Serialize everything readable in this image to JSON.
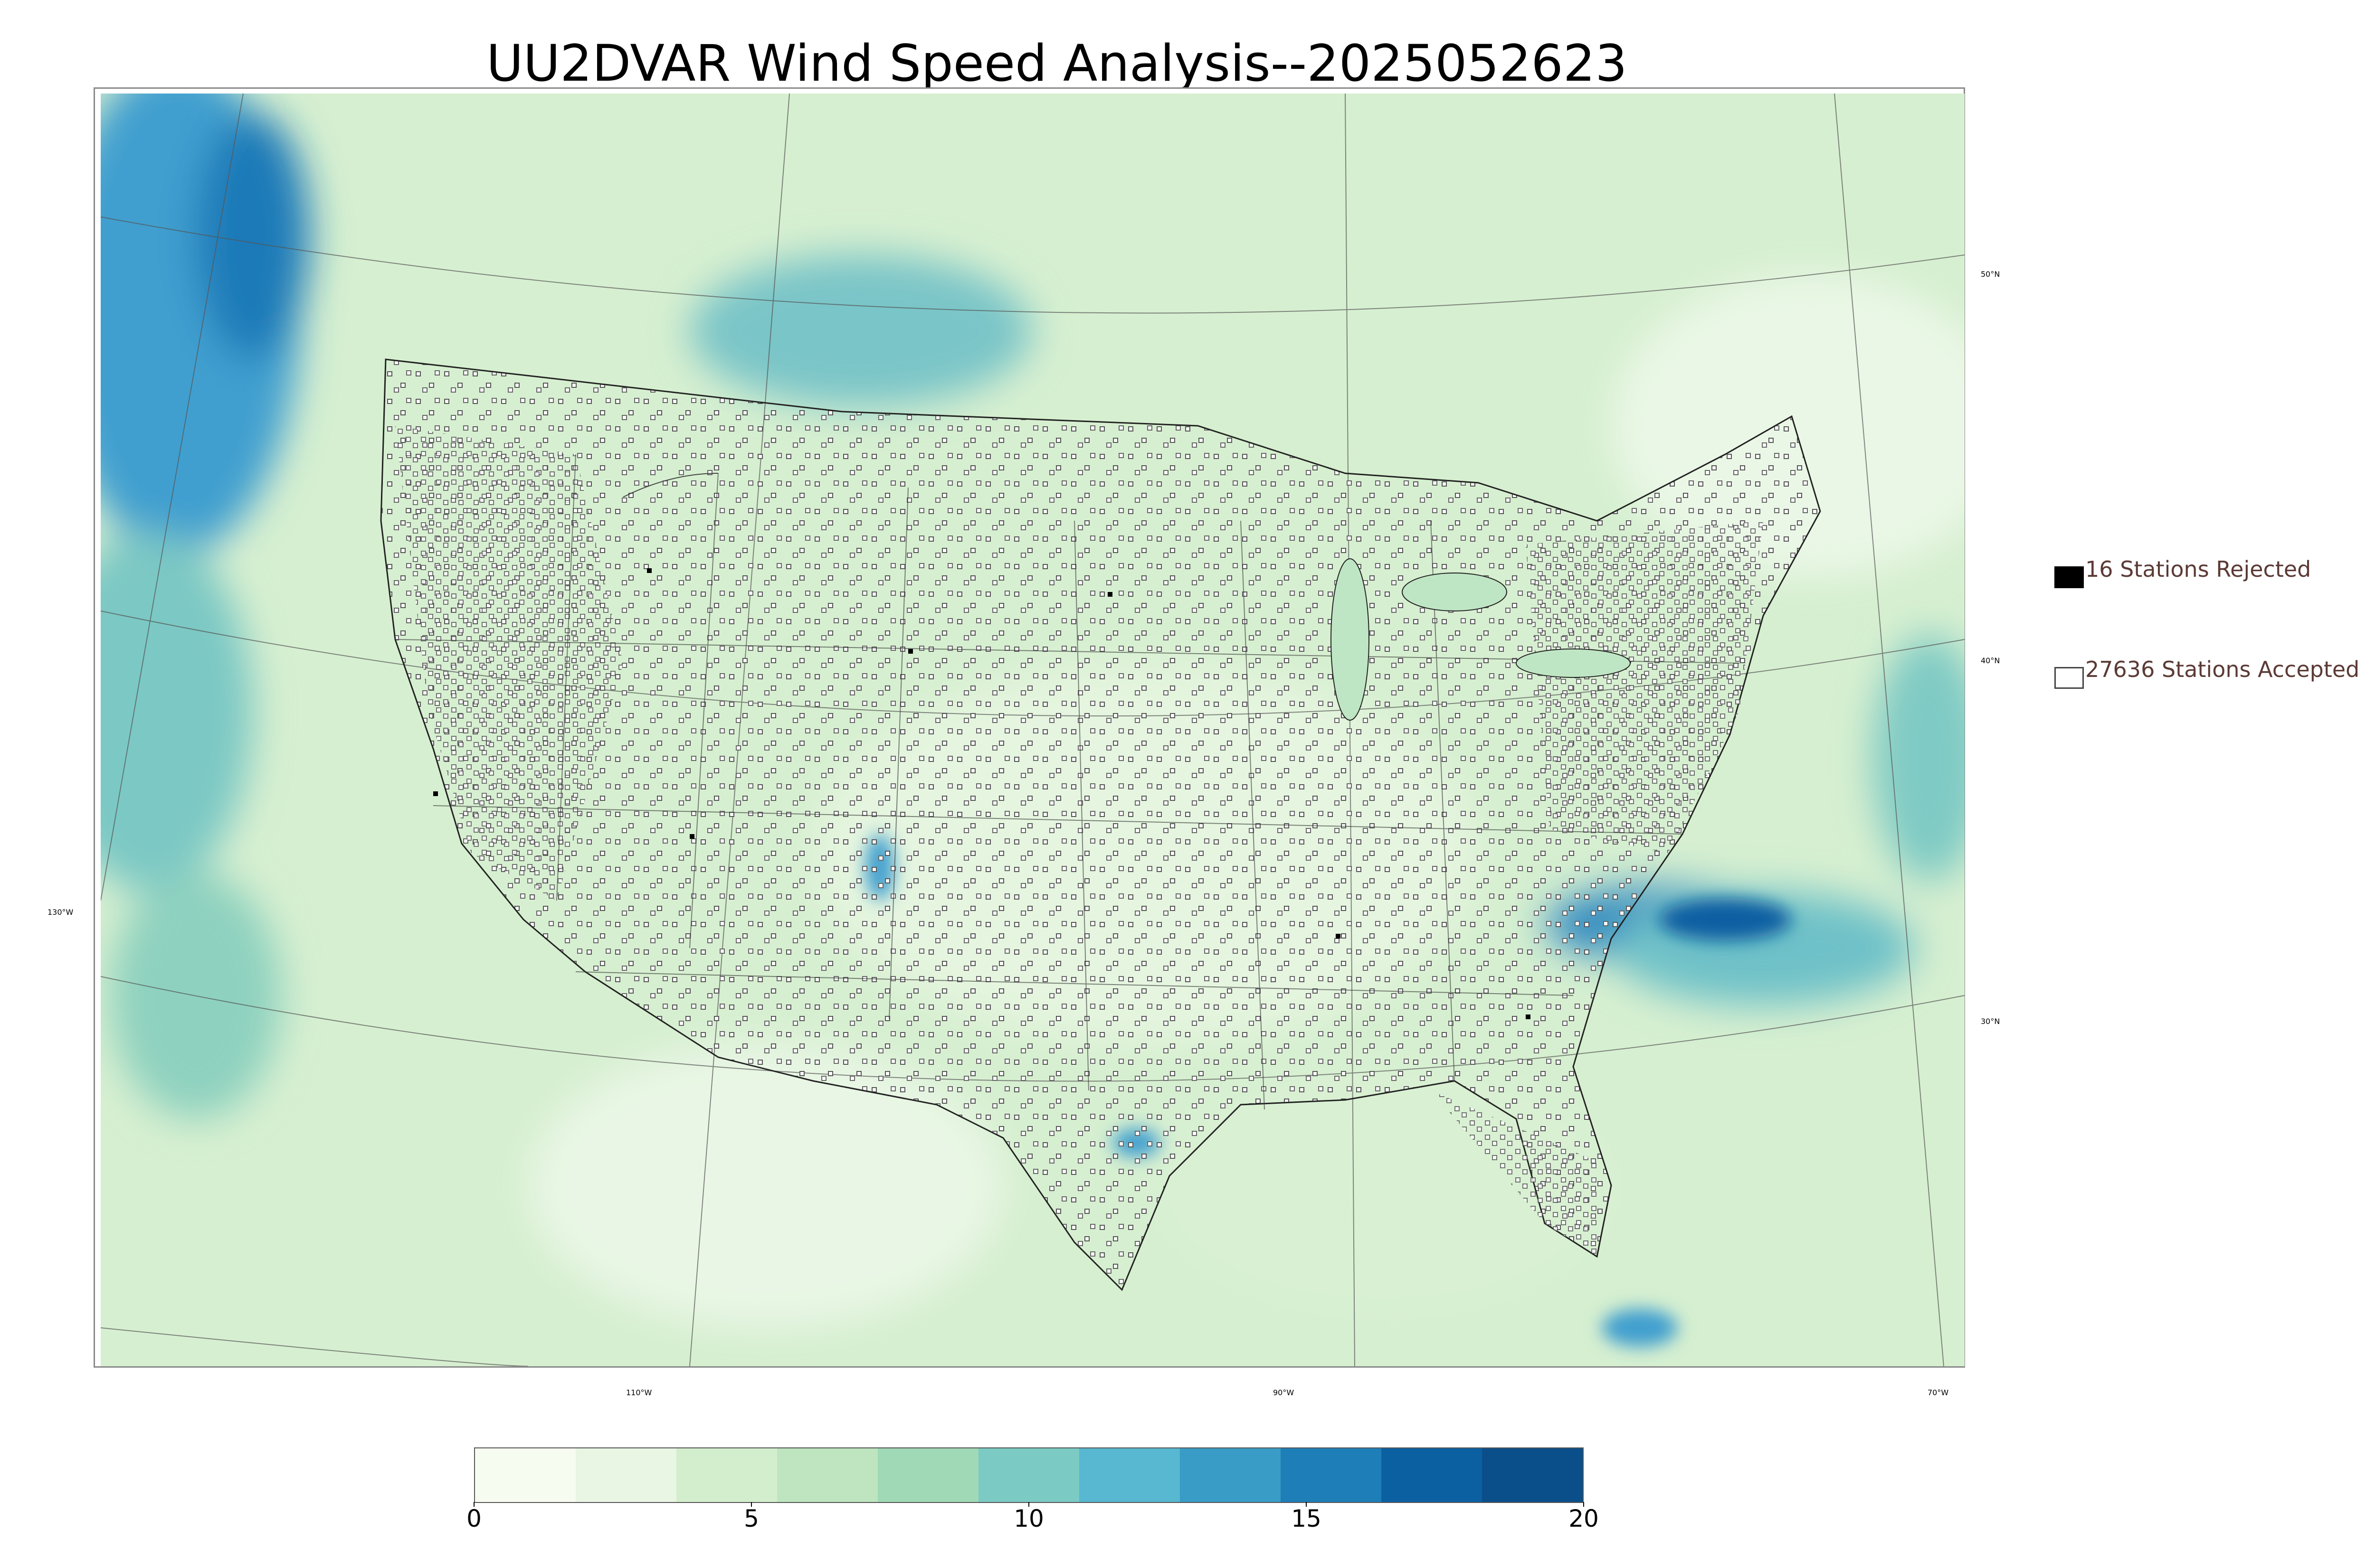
{
  "title": "UU2DVAR Wind Speed Analysis--2025052623",
  "legend": {
    "rejected": {
      "label": "16 Stations Rejected",
      "color": "#000000"
    },
    "accepted": {
      "label": "27636 Stations Accepted",
      "color": "#ffffff"
    }
  },
  "graticule": {
    "lat_labels": [
      "50°N",
      "40°N",
      "30°N"
    ],
    "lon_labels": [
      "130°W",
      "110°W",
      "90°W",
      "70°W"
    ]
  },
  "colorbar": {
    "min": 0,
    "max": 20,
    "ticks": [
      "0",
      "5",
      "10",
      "15",
      "20"
    ],
    "colors": [
      "#f7fcf0",
      "#e8f6e3",
      "#d3eecd",
      "#bee5bf",
      "#a0d9b5",
      "#7bcbc4",
      "#58b7d1",
      "#399cc6",
      "#1e7eb7",
      "#0b60a1",
      "#0b4f8a"
    ]
  }
}
